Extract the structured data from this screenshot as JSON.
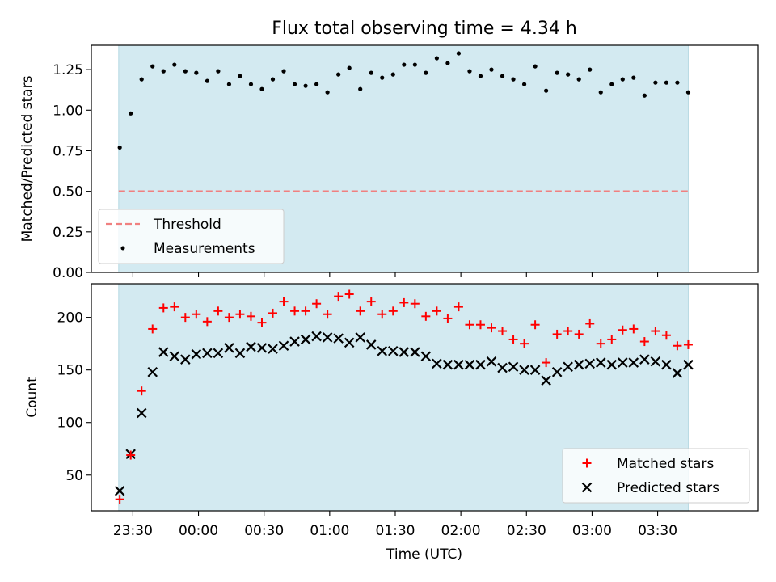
{
  "figure": {
    "title": "Flux total observing time = 4.34 h",
    "xlabel": "Time (UTC)",
    "xticks": [
      "23:30",
      "00:00",
      "00:30",
      "01:00",
      "01:30",
      "02:00",
      "02:30",
      "03:00",
      "03:30"
    ],
    "xtick_minutes": [
      -30,
      0,
      30,
      60,
      90,
      120,
      150,
      180,
      210
    ],
    "xlim_minutes": [
      -49,
      256
    ],
    "shade_minutes": [
      -36.5,
      224
    ],
    "shade_color": "#d3eaf1",
    "time_minutes": [
      -36,
      -31,
      -26,
      -21,
      -16,
      -11,
      -6,
      -1,
      4,
      9,
      14,
      19,
      24,
      29,
      34,
      39,
      44,
      49,
      54,
      59,
      64,
      69,
      74,
      79,
      84,
      89,
      94,
      99,
      104,
      109,
      114,
      119,
      124,
      129,
      134,
      139,
      144,
      149,
      154,
      159,
      164,
      169,
      174,
      179,
      184,
      189,
      194,
      199,
      204,
      209,
      214,
      219,
      224
    ]
  },
  "chart_data": [
    {
      "type": "scatter",
      "panel": "top",
      "ylabel": "Matched/Predicted stars",
      "ylim": [
        0,
        1.4
      ],
      "yticks": [
        "0.00",
        "0.25",
        "0.50",
        "0.75",
        "1.00",
        "1.25"
      ],
      "ytick_values": [
        0,
        0.25,
        0.5,
        0.75,
        1.0,
        1.25
      ],
      "threshold": {
        "label": "Threshold",
        "value": 0.5,
        "color": "#f08080"
      },
      "series": [
        {
          "name": "Measurements",
          "color": "#000000",
          "values": [
            0.77,
            0.98,
            1.19,
            1.27,
            1.24,
            1.28,
            1.24,
            1.23,
            1.18,
            1.24,
            1.16,
            1.21,
            1.16,
            1.13,
            1.19,
            1.24,
            1.16,
            1.15,
            1.16,
            1.11,
            1.22,
            1.26,
            1.13,
            1.23,
            1.2,
            1.22,
            1.28,
            1.28,
            1.23,
            1.32,
            1.29,
            1.35,
            1.24,
            1.21,
            1.25,
            1.21,
            1.19,
            1.16,
            1.27,
            1.12,
            1.23,
            1.22,
            1.19,
            1.25,
            1.11,
            1.16,
            1.19,
            1.2,
            1.09,
            1.17,
            1.17,
            1.17,
            1.11
          ]
        }
      ],
      "legend": {
        "placement": "lower-left",
        "entries": [
          "Threshold",
          "Measurements"
        ]
      }
    },
    {
      "type": "scatter",
      "panel": "bottom",
      "ylabel": "Count",
      "ylim": [
        16,
        232
      ],
      "yticks": [
        "50",
        "100",
        "150",
        "200"
      ],
      "ytick_values": [
        50,
        100,
        150,
        200
      ],
      "series": [
        {
          "name": "Matched stars",
          "marker": "+",
          "color": "#ff0000",
          "values": [
            27,
            69,
            130,
            189,
            209,
            210,
            200,
            203,
            196,
            206,
            200,
            203,
            201,
            195,
            204,
            215,
            206,
            206,
            213,
            203,
            220,
            222,
            206,
            215,
            203,
            206,
            214,
            213,
            201,
            206,
            199,
            210,
            193,
            193,
            190,
            187,
            179,
            175,
            193,
            157,
            184,
            187,
            184,
            194,
            175,
            179,
            188,
            189,
            177,
            187,
            183,
            173,
            174
          ]
        },
        {
          "name": "Predicted stars",
          "marker": "x",
          "color": "#000000",
          "values": [
            35,
            70,
            109,
            148,
            167,
            163,
            160,
            165,
            166,
            166,
            171,
            166,
            172,
            171,
            170,
            173,
            177,
            179,
            182,
            181,
            180,
            176,
            181,
            174,
            168,
            168,
            167,
            167,
            163,
            156,
            155,
            155,
            155,
            155,
            158,
            152,
            153,
            150,
            150,
            140,
            148,
            153,
            155,
            156,
            157,
            155,
            157,
            157,
            160,
            158,
            155,
            147,
            155
          ]
        }
      ],
      "legend": {
        "placement": "lower-right",
        "entries": [
          "Matched stars",
          "Predicted stars"
        ]
      }
    }
  ]
}
